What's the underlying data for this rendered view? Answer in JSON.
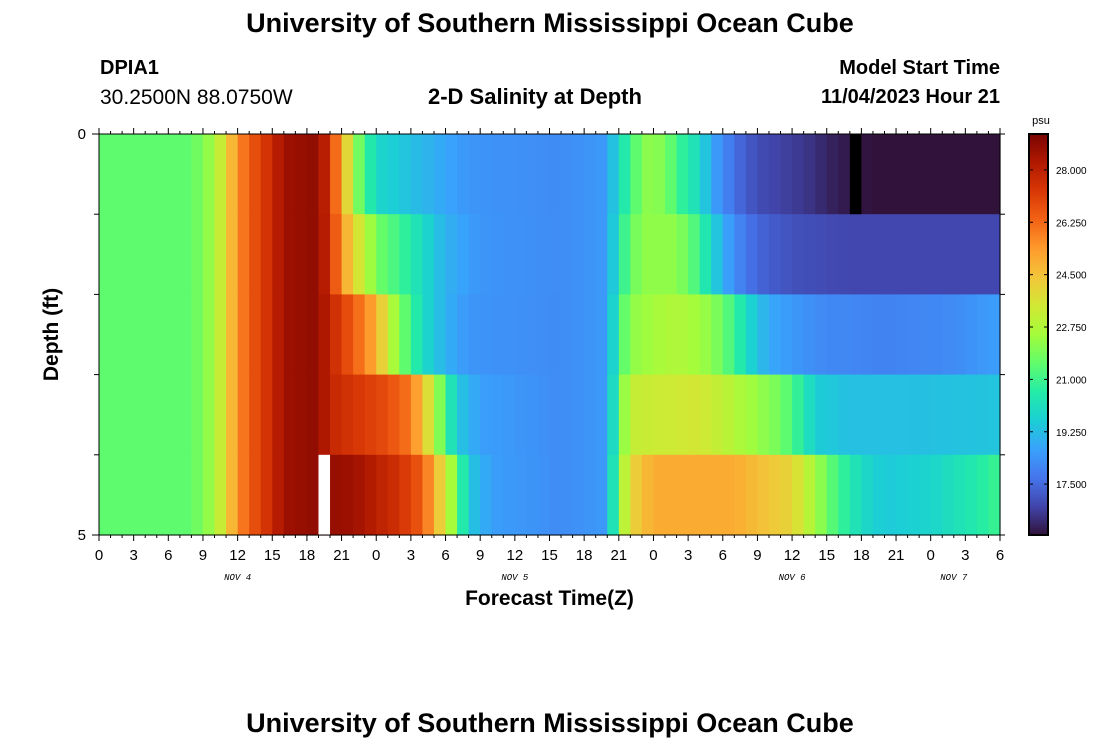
{
  "header": {
    "title": "University of Southern Mississippi Ocean Cube",
    "station_id": "DPIA1",
    "coordinates": "30.2500N  88.0750W",
    "subtitle": "2-D Salinity at Depth",
    "model_start_label": "Model Start Time",
    "model_start_value": "11/04/2023 Hour 21"
  },
  "footer": {
    "title": "University of Southern Mississippi Ocean Cube"
  },
  "chart_data": {
    "type": "heatmap",
    "title": "2-D Salinity at Depth",
    "xlabel": "Forecast Time(Z)",
    "ylabel": "Depth (ft)",
    "x_tick_labels": [
      "0",
      "3",
      "6",
      "9",
      "12",
      "15",
      "18",
      "21",
      "0",
      "3",
      "6",
      "9",
      "12",
      "15",
      "18",
      "21",
      "0",
      "3",
      "6",
      "9",
      "12",
      "15",
      "18",
      "21",
      "0",
      "3",
      "6"
    ],
    "date_labels": [
      "NOV 4",
      "NOV 5",
      "NOV 6",
      "NOV 7"
    ],
    "y_tick_labels": [
      "0",
      "5"
    ],
    "ylim": [
      0,
      5
    ],
    "y_inverted": true,
    "x_hours_start": 0,
    "x_hours_end": 78,
    "depth_rows": 5,
    "colorbar": {
      "unit": "psu",
      "ticks": [
        "28.000",
        "26.250",
        "24.500",
        "22.750",
        "21.000",
        "19.250",
        "17.500"
      ],
      "range": [
        15.8,
        29.2
      ],
      "colors": [
        "#30123b",
        "#4145ab",
        "#4675ed",
        "#39a2fc",
        "#1bcfd4",
        "#24eca6",
        "#61fc6c",
        "#a4fc3b",
        "#d1e834",
        "#f3c63a",
        "#fe9b2d",
        "#f36315",
        "#d93806",
        "#b11901",
        "#7a0402"
      ]
    },
    "profiles": [
      {
        "depth_row": 1,
        "points": [
          [
            0,
            21.5
          ],
          [
            8,
            21.5
          ],
          [
            10,
            22.5
          ],
          [
            11,
            24.0
          ],
          [
            12,
            25.5
          ],
          [
            13,
            26.5
          ],
          [
            15,
            27.7
          ],
          [
            16,
            28.6
          ],
          [
            19,
            28.8
          ],
          [
            20,
            27.4
          ],
          [
            21,
            25.0
          ],
          [
            22,
            22.8
          ],
          [
            23,
            20.8
          ],
          [
            24.5,
            19.8
          ],
          [
            27,
            19.3
          ],
          [
            32,
            18.4
          ],
          [
            40,
            18.2
          ],
          [
            44,
            18.5
          ],
          [
            45,
            20.2
          ],
          [
            46,
            20.8
          ],
          [
            47,
            22.2
          ],
          [
            49,
            22.0
          ],
          [
            50,
            21.0
          ],
          [
            52,
            20.0
          ],
          [
            53,
            18.8
          ],
          [
            55,
            17.6
          ],
          [
            57,
            16.9
          ],
          [
            61,
            16.5
          ],
          [
            64,
            16.0
          ],
          [
            67,
            15.8
          ],
          [
            78,
            15.8
          ]
        ]
      },
      {
        "depth_row": 2,
        "points": [
          [
            0,
            21.5
          ],
          [
            8,
            21.5
          ],
          [
            10,
            22.5
          ],
          [
            11,
            24.0
          ],
          [
            12,
            25.5
          ],
          [
            13,
            26.5
          ],
          [
            15,
            27.7
          ],
          [
            16,
            28.6
          ],
          [
            19,
            28.8
          ],
          [
            20,
            27.5
          ],
          [
            21,
            25.5
          ],
          [
            22,
            24.0
          ],
          [
            23,
            23.0
          ],
          [
            24,
            21.8
          ],
          [
            26,
            21.0
          ],
          [
            28,
            20.0
          ],
          [
            30,
            19.0
          ],
          [
            33,
            18.4
          ],
          [
            40,
            18.2
          ],
          [
            44,
            18.5
          ],
          [
            45,
            20.5
          ],
          [
            46,
            21.5
          ],
          [
            47,
            22.2
          ],
          [
            50,
            22.2
          ],
          [
            52,
            21.0
          ],
          [
            53,
            19.8
          ],
          [
            55,
            18.2
          ],
          [
            57,
            17.4
          ],
          [
            60,
            17.0
          ],
          [
            65,
            16.8
          ],
          [
            78,
            16.8
          ]
        ]
      },
      {
        "depth_row": 3,
        "points": [
          [
            0,
            21.5
          ],
          [
            8,
            21.5
          ],
          [
            10,
            22.5
          ],
          [
            11,
            24.0
          ],
          [
            12,
            25.5
          ],
          [
            13,
            26.5
          ],
          [
            15,
            27.7
          ],
          [
            16,
            28.6
          ],
          [
            19,
            28.8
          ],
          [
            20,
            27.8
          ],
          [
            22,
            26.5
          ],
          [
            24,
            25.0
          ],
          [
            25,
            23.2
          ],
          [
            26,
            22.0
          ],
          [
            27,
            21.0
          ],
          [
            28,
            20.0
          ],
          [
            30,
            19.0
          ],
          [
            32,
            18.4
          ],
          [
            40,
            18.2
          ],
          [
            44,
            18.5
          ],
          [
            45,
            21.0
          ],
          [
            46,
            22.2
          ],
          [
            50,
            22.8
          ],
          [
            53,
            22.2
          ],
          [
            55,
            21.0
          ],
          [
            56,
            20.0
          ],
          [
            58,
            18.8
          ],
          [
            62,
            18.2
          ],
          [
            68,
            18.0
          ],
          [
            74,
            18.2
          ],
          [
            78,
            18.6
          ]
        ]
      },
      {
        "depth_row": 4,
        "points": [
          [
            0,
            21.5
          ],
          [
            8,
            21.5
          ],
          [
            10,
            22.5
          ],
          [
            11,
            24.0
          ],
          [
            12,
            25.5
          ],
          [
            13,
            26.5
          ],
          [
            15,
            27.7
          ],
          [
            16,
            28.6
          ],
          [
            19,
            28.8
          ],
          [
            20,
            27.8
          ],
          [
            25,
            26.8
          ],
          [
            27,
            26.0
          ],
          [
            28,
            24.5
          ],
          [
            29,
            23.0
          ],
          [
            30,
            21.0
          ],
          [
            31,
            19.5
          ],
          [
            33,
            18.6
          ],
          [
            40,
            18.2
          ],
          [
            44,
            18.5
          ],
          [
            45,
            21.5
          ],
          [
            46,
            23.2
          ],
          [
            52,
            23.5
          ],
          [
            55,
            22.8
          ],
          [
            59,
            21.8
          ],
          [
            61,
            20.5
          ],
          [
            62,
            19.6
          ],
          [
            65,
            19.3
          ],
          [
            70,
            19.3
          ],
          [
            78,
            19.4
          ]
        ]
      },
      {
        "depth_row": 5,
        "points": [
          [
            0,
            21.5
          ],
          [
            8,
            21.5
          ],
          [
            10,
            22.5
          ],
          [
            11,
            24.0
          ],
          [
            12,
            25.5
          ],
          [
            13,
            26.5
          ],
          [
            15,
            27.7
          ],
          [
            16,
            28.6
          ],
          [
            19,
            28.8
          ],
          [
            22,
            28.6
          ],
          [
            26,
            27.5
          ],
          [
            28,
            26.5
          ],
          [
            29,
            25.0
          ],
          [
            30,
            23.5
          ],
          [
            31,
            21.5
          ],
          [
            32,
            19.5
          ],
          [
            34,
            18.6
          ],
          [
            40,
            18.2
          ],
          [
            44,
            18.5
          ],
          [
            45,
            22.0
          ],
          [
            46,
            24.0
          ],
          [
            48,
            25.0
          ],
          [
            55,
            25.0
          ],
          [
            60,
            24.0
          ],
          [
            62,
            22.5
          ],
          [
            64,
            21.0
          ],
          [
            66,
            20.0
          ],
          [
            68,
            19.5
          ],
          [
            72,
            19.8
          ],
          [
            76,
            20.5
          ],
          [
            78,
            21.0
          ]
        ]
      }
    ],
    "marks": [
      {
        "depth_row": 1,
        "hour": 65,
        "color": "#000000"
      },
      {
        "depth_row": 5,
        "hour": 19,
        "color": "#ffffff"
      }
    ]
  }
}
